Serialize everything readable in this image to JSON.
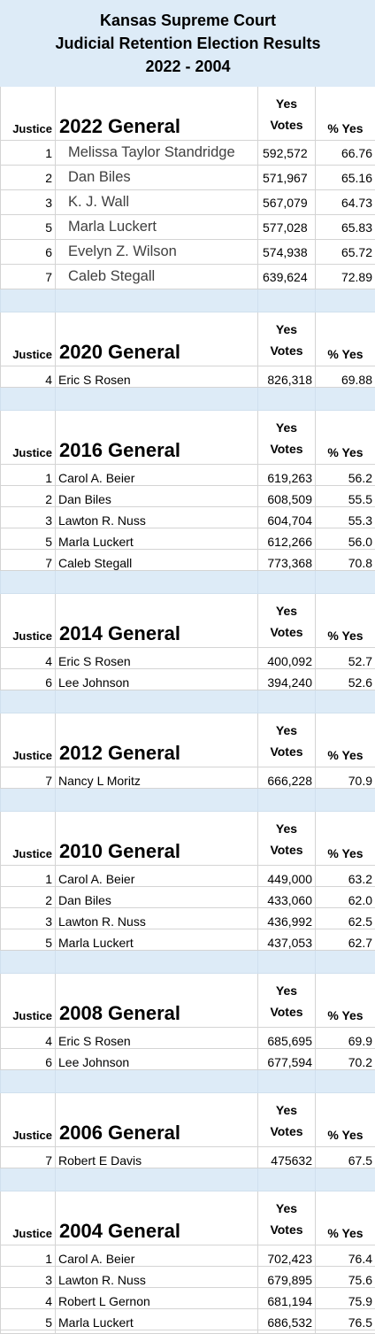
{
  "title": {
    "line1": "Kansas Supreme Court",
    "line2": "Judicial Retention Election Results",
    "line3": "2022 - 2004"
  },
  "columns": {
    "justice": "Justice",
    "yes_top": "Yes",
    "yes_bottom": "Votes",
    "pct": "% Yes"
  },
  "sections": [
    {
      "label": "2022 General",
      "rows": [
        {
          "justice": "1",
          "name": "Melissa Taylor Standridge",
          "votes": "592,572",
          "pct": "66.76"
        },
        {
          "justice": "2",
          "name": "Dan Biles",
          "votes": "571,967",
          "pct": "65.16"
        },
        {
          "justice": "3",
          "name": "K. J. Wall",
          "votes": "567,079",
          "pct": "64.73"
        },
        {
          "justice": "5",
          "name": "Marla Luckert",
          "votes": "577,028",
          "pct": "65.83"
        },
        {
          "justice": "6",
          "name": "Evelyn Z. Wilson",
          "votes": "574,938",
          "pct": "65.72"
        },
        {
          "justice": "7",
          "name": "Caleb Stegall",
          "votes": "639,624",
          "pct": "72.89"
        }
      ]
    },
    {
      "label": "2020 General",
      "rows": [
        {
          "justice": "4",
          "name": "Eric S Rosen",
          "votes": "826,318",
          "pct": "69.88"
        }
      ]
    },
    {
      "label": "2016 General",
      "rows": [
        {
          "justice": "1",
          "name": "Carol A. Beier",
          "votes": "619,263",
          "pct": "56.2"
        },
        {
          "justice": "2",
          "name": "Dan Biles",
          "votes": "608,509",
          "pct": "55.5"
        },
        {
          "justice": "3",
          "name": "Lawton R. Nuss",
          "votes": "604,704",
          "pct": "55.3"
        },
        {
          "justice": "5",
          "name": "Marla Luckert",
          "votes": "612,266",
          "pct": "56.0"
        },
        {
          "justice": "7",
          "name": "Caleb Stegall",
          "votes": "773,368",
          "pct": "70.8"
        }
      ]
    },
    {
      "label": "2014 General",
      "rows": [
        {
          "justice": "4",
          "name": "Eric S Rosen",
          "votes": "400,092",
          "pct": "52.7"
        },
        {
          "justice": "6",
          "name": "Lee Johnson",
          "votes": "394,240",
          "pct": "52.6"
        }
      ]
    },
    {
      "label": "2012 General",
      "rows": [
        {
          "justice": "7",
          "name": "Nancy L Moritz",
          "votes": "666,228",
          "pct": "70.9"
        }
      ]
    },
    {
      "label": "2010 General",
      "rows": [
        {
          "justice": "1",
          "name": "Carol A. Beier",
          "votes": "449,000",
          "pct": "63.2"
        },
        {
          "justice": "2",
          "name": "Dan Biles",
          "votes": "433,060",
          "pct": "62.0"
        },
        {
          "justice": "3",
          "name": "Lawton R. Nuss",
          "votes": "436,992",
          "pct": "62.5"
        },
        {
          "justice": "5",
          "name": "Marla Luckert",
          "votes": "437,053",
          "pct": "62.7"
        }
      ]
    },
    {
      "label": "2008 General",
      "rows": [
        {
          "justice": "4",
          "name": "Eric S Rosen",
          "votes": "685,695",
          "pct": "69.9"
        },
        {
          "justice": "6",
          "name": "Lee Johnson",
          "votes": "677,594",
          "pct": "70.2"
        }
      ]
    },
    {
      "label": "2006 General",
      "rows": [
        {
          "justice": "7",
          "name": "Robert E Davis",
          "votes": "475632",
          "pct": "67.5"
        }
      ]
    },
    {
      "label": "2004 General",
      "rows": [
        {
          "justice": "1",
          "name": "Carol A. Beier",
          "votes": "702,423",
          "pct": "76.4"
        },
        {
          "justice": "3",
          "name": "Lawton R. Nuss",
          "votes": "679,895",
          "pct": "75.6"
        },
        {
          "justice": "4",
          "name": "Robert L Gernon",
          "votes": "681,194",
          "pct": "75.9"
        },
        {
          "justice": "5",
          "name": "Marla Luckert",
          "votes": "686,532",
          "pct": "76.5"
        }
      ]
    }
  ]
}
